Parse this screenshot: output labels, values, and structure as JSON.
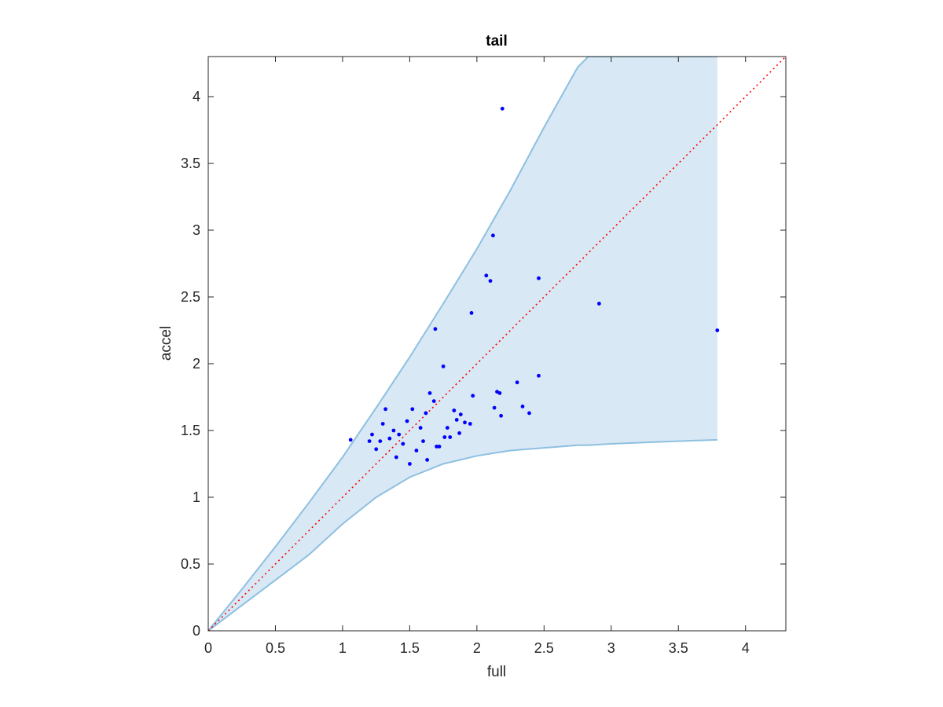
{
  "chart_data": {
    "type": "scatter",
    "title": "tail",
    "xlabel": "full",
    "ylabel": "accel",
    "xlim": [
      0,
      4.3
    ],
    "ylim": [
      0,
      4.3
    ],
    "x_ticks": [
      0,
      0.5,
      1,
      1.5,
      2,
      2.5,
      3,
      3.5,
      4
    ],
    "y_ticks": [
      0,
      0.5,
      1,
      1.5,
      2,
      2.5,
      3,
      3.5,
      4
    ],
    "x_tick_labels": [
      "0",
      "0.5",
      "1",
      "1.5",
      "2",
      "2.5",
      "3",
      "3.5",
      "4"
    ],
    "y_tick_labels": [
      "0",
      "0.5",
      "1",
      "1.5",
      "2",
      "2.5",
      "3",
      "3.5",
      "4"
    ],
    "grid": false,
    "colors": {
      "points": "#0000ff",
      "band_fill": "#d8e8f4",
      "band_edge": "#8ec0e0",
      "reference_line": "#ff0000",
      "axes": "#262626"
    },
    "band": {
      "x": [
        0,
        0.25,
        0.5,
        0.75,
        1.0,
        1.25,
        1.5,
        1.75,
        2.0,
        2.25,
        2.5,
        2.75,
        2.83,
        3.0,
        3.25,
        3.5,
        3.79
      ],
      "upper": [
        0,
        0.31,
        0.63,
        0.96,
        1.3,
        1.67,
        2.05,
        2.45,
        2.86,
        3.3,
        3.77,
        4.22,
        4.3,
        4.3,
        4.3,
        4.3,
        4.3
      ],
      "lower": [
        0,
        0.19,
        0.38,
        0.57,
        0.8,
        1.0,
        1.15,
        1.25,
        1.31,
        1.35,
        1.37,
        1.39,
        1.39,
        1.4,
        1.41,
        1.42,
        1.43
      ]
    },
    "reference_line": {
      "style": "dotted",
      "x": [
        0,
        4.3
      ],
      "y": [
        0,
        4.3
      ]
    },
    "series": [
      {
        "x": [
          2.19,
          2.12,
          2.07,
          2.1,
          2.46,
          2.91,
          3.79,
          1.69,
          1.96,
          1.75,
          1.06,
          2.46,
          2.3,
          2.15,
          2.13,
          2.18,
          2.34,
          2.39,
          2.17,
          1.97,
          1.95,
          1.65,
          1.68,
          1.83,
          1.85,
          1.78,
          1.72,
          1.76,
          1.87,
          1.91,
          1.62,
          1.58,
          1.52,
          1.48,
          1.45,
          1.55,
          1.6,
          1.42,
          1.38,
          1.35,
          1.32,
          1.28,
          1.25,
          1.22,
          1.2,
          1.3,
          1.4,
          1.5,
          1.63,
          1.7,
          1.8,
          1.88
        ],
        "y": [
          3.91,
          2.96,
          2.66,
          2.62,
          2.64,
          2.45,
          2.25,
          2.26,
          2.38,
          1.98,
          1.43,
          1.91,
          1.86,
          1.79,
          1.67,
          1.61,
          1.68,
          1.63,
          1.78,
          1.76,
          1.55,
          1.78,
          1.72,
          1.65,
          1.58,
          1.52,
          1.38,
          1.45,
          1.48,
          1.56,
          1.63,
          1.52,
          1.66,
          1.57,
          1.4,
          1.35,
          1.42,
          1.47,
          1.5,
          1.44,
          1.66,
          1.42,
          1.36,
          1.47,
          1.42,
          1.55,
          1.3,
          1.25,
          1.28,
          1.38,
          1.45,
          1.62
        ]
      }
    ]
  }
}
